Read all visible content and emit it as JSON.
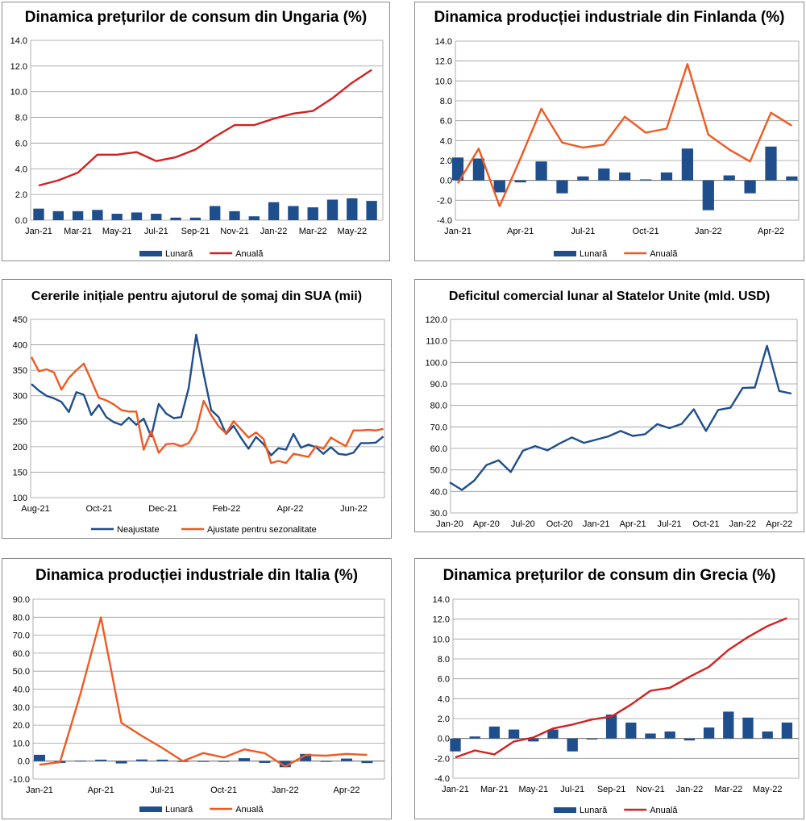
{
  "chart_data": [
    {
      "id": "hu",
      "type": "bar+line",
      "title": "Dinamica prețurilor de consum din Ungaria (%)",
      "ylim": [
        0,
        14
      ],
      "yticks": [
        "0.0",
        "2.0",
        "4.0",
        "6.0",
        "8.0",
        "10.0",
        "12.0",
        "14.0"
      ],
      "categories": [
        "Jan-21",
        "Feb-21",
        "Mar-21",
        "Apr-21",
        "May-21",
        "Jun-21",
        "Jul-21",
        "Aug-21",
        "Sep-21",
        "Oct-21",
        "Nov-21",
        "Dec-21",
        "Jan-22",
        "Feb-22",
        "Mar-22",
        "Apr-22",
        "May-22",
        "Jun-22"
      ],
      "xtick_labels": [
        "Jan-21",
        "Mar-21",
        "May-21",
        "Jul-21",
        "Sep-21",
        "Nov-21",
        "Jan-22",
        "Mar-22",
        "May-22"
      ],
      "series": [
        {
          "name": "Lunară",
          "kind": "bar",
          "color": "#1f4e8c",
          "values": [
            0.9,
            0.7,
            0.7,
            0.8,
            0.5,
            0.6,
            0.5,
            0.2,
            0.2,
            1.1,
            0.7,
            0.3,
            1.4,
            1.1,
            1.0,
            1.6,
            1.7,
            1.5
          ]
        },
        {
          "name": "Anuală",
          "kind": "line",
          "color": "#d42020",
          "values": [
            2.7,
            3.1,
            3.7,
            5.1,
            5.1,
            5.3,
            4.6,
            4.9,
            5.5,
            6.5,
            7.4,
            7.4,
            7.9,
            8.3,
            8.5,
            9.5,
            10.7,
            11.7
          ]
        }
      ]
    },
    {
      "id": "fi",
      "type": "bar+line",
      "title": "Dinamica producției industriale din Finlanda (%)",
      "ylim": [
        -4,
        14
      ],
      "yticks": [
        "-4.0",
        "-2.0",
        "0.0",
        "2.0",
        "4.0",
        "6.0",
        "8.0",
        "10.0",
        "12.0",
        "14.0"
      ],
      "categories": [
        "Jan-21",
        "Feb-21",
        "Mar-21",
        "Apr-21",
        "May-21",
        "Jun-21",
        "Jul-21",
        "Aug-21",
        "Sep-21",
        "Oct-21",
        "Nov-21",
        "Dec-21",
        "Jan-22",
        "Feb-22",
        "Mar-22",
        "Apr-22",
        "May-22"
      ],
      "xtick_labels": [
        "Jan-21",
        "Apr-21",
        "Jul-21",
        "Oct-21",
        "Jan-22",
        "Apr-22"
      ],
      "series": [
        {
          "name": "Lunară",
          "kind": "bar",
          "color": "#1f4e8c",
          "values": [
            2.3,
            2.2,
            -1.2,
            -0.2,
            1.9,
            -1.3,
            0.4,
            1.2,
            0.8,
            0.1,
            0.8,
            3.2,
            -3.0,
            0.5,
            -1.3,
            3.4,
            0.4
          ]
        },
        {
          "name": "Anuală",
          "kind": "line",
          "color": "#f05a22",
          "values": [
            -0.3,
            3.2,
            -2.6,
            2.2,
            7.2,
            3.8,
            3.3,
            3.6,
            6.4,
            4.8,
            5.2,
            11.7,
            4.6,
            3.1,
            1.9,
            6.8,
            5.5
          ]
        }
      ]
    },
    {
      "id": "us-claims",
      "type": "line",
      "title": "Cererile inițiale pentru ajutorul de șomaj din SUA (mii)",
      "ylim": [
        100,
        450
      ],
      "yticks": [
        "100",
        "150",
        "200",
        "250",
        "300",
        "350",
        "400",
        "450"
      ],
      "x_count": 48,
      "xtick_labels": [
        "Aug-21",
        "Oct-21",
        "Dec-21",
        "Feb-22",
        "Apr-22",
        "Jun-22"
      ],
      "series": [
        {
          "name": "Neajustate",
          "kind": "line",
          "color": "#1f4e8c",
          "values": [
            323,
            310,
            300,
            295,
            288,
            268,
            307,
            302,
            262,
            282,
            258,
            248,
            243,
            257,
            243,
            255,
            220,
            284,
            265,
            256,
            258,
            315,
            420,
            343,
            272,
            258,
            225,
            241,
            217,
            196,
            219,
            205,
            183,
            197,
            194,
            225,
            198,
            204,
            199,
            186,
            199,
            186,
            184,
            188,
            207,
            207,
            208,
            220
          ]
        },
        {
          "name": "Ajustate pentru sezonalitate",
          "kind": "line",
          "color": "#f05a22",
          "values": [
            376,
            348,
            352,
            346,
            312,
            335,
            350,
            363,
            330,
            296,
            291,
            283,
            272,
            269,
            269,
            194,
            230,
            188,
            205,
            206,
            201,
            207,
            232,
            290,
            262,
            240,
            226,
            250,
            234,
            218,
            228,
            215,
            168,
            172,
            168,
            186,
            183,
            180,
            201,
            196,
            218,
            209,
            201,
            232,
            232,
            233,
            232,
            235
          ]
        }
      ]
    },
    {
      "id": "us-deficit",
      "type": "line",
      "title": "Deficitul comercial lunar al Statelor Unite (mld. USD)",
      "ylim": [
        30,
        120
      ],
      "yticks": [
        "30.0",
        "40.0",
        "50.0",
        "60.0",
        "70.0",
        "80.0",
        "90.0",
        "100.0",
        "110.0",
        "120.0"
      ],
      "categories": [
        "Jan-20",
        "Feb-20",
        "Mar-20",
        "Apr-20",
        "May-20",
        "Jun-20",
        "Jul-20",
        "Aug-20",
        "Sep-20",
        "Oct-20",
        "Nov-20",
        "Dec-20",
        "Jan-21",
        "Feb-21",
        "Mar-21",
        "Apr-21",
        "May-21",
        "Jun-21",
        "Jul-21",
        "Aug-21",
        "Sep-21",
        "Oct-21",
        "Nov-21",
        "Dec-21",
        "Jan-22",
        "Feb-22",
        "Mar-22",
        "Apr-22",
        "May-22"
      ],
      "xtick_labels": [
        "Jan-20",
        "Apr-20",
        "Jul-20",
        "Oct-20",
        "Jan-21",
        "Apr-21",
        "Jul-21",
        "Oct-21",
        "Jan-22",
        "Apr-22"
      ],
      "series": [
        {
          "name": "Deficit",
          "kind": "line",
          "color": "#1f4e8c",
          "values": [
            44.2,
            40.7,
            45.0,
            52.2,
            54.5,
            49.0,
            58.9,
            61.1,
            59.1,
            62.3,
            65.1,
            62.6,
            64.1,
            65.6,
            68.1,
            65.8,
            66.6,
            71.3,
            69.4,
            71.4,
            78.2,
            68.1,
            77.9,
            78.9,
            88.1,
            88.3,
            107.7,
            86.7,
            85.5
          ]
        }
      ]
    },
    {
      "id": "it",
      "type": "bar+line",
      "title": "Dinamica producției industriale din Italia (%)",
      "ylim": [
        -10,
        90
      ],
      "yticks": [
        "-10.0",
        "0.0",
        "10.0",
        "20.0",
        "30.0",
        "40.0",
        "50.0",
        "60.0",
        "70.0",
        "80.0",
        "90.0"
      ],
      "categories": [
        "Jan-21",
        "Feb-21",
        "Mar-21",
        "Apr-21",
        "May-21",
        "Jun-21",
        "Jul-21",
        "Aug-21",
        "Sep-21",
        "Oct-21",
        "Nov-21",
        "Dec-21",
        "Jan-22",
        "Feb-22",
        "Mar-22",
        "Apr-22",
        "May-22"
      ],
      "xtick_labels": [
        "Jan-21",
        "Apr-21",
        "Jul-21",
        "Oct-21",
        "Jan-22",
        "Apr-22"
      ],
      "series": [
        {
          "name": "Lunară",
          "kind": "bar",
          "color": "#1f4e8c",
          "values": [
            3.5,
            -1.0,
            0.2,
            0.8,
            -1.3,
            0.9,
            0.8,
            0.0,
            0.0,
            -0.4,
            1.6,
            -1.0,
            -3.4,
            4.0,
            0.0,
            1.4,
            -1.1
          ]
        },
        {
          "name": "Anuală",
          "kind": "line",
          "color": "#f05a22",
          "values": [
            -2.0,
            -0.6,
            37.3,
            79.9,
            21.3,
            14.0,
            7.3,
            0.0,
            4.5,
            2.0,
            6.5,
            4.4,
            -3.0,
            3.3,
            3.0,
            4.0,
            3.4
          ]
        }
      ]
    },
    {
      "id": "gr",
      "type": "bar+line",
      "title": "Dinamica prețurilor de consum din Grecia (%)",
      "ylim": [
        -4,
        14
      ],
      "yticks": [
        "-4.0",
        "-2.0",
        "0.0",
        "2.0",
        "4.0",
        "6.0",
        "8.0",
        "10.0",
        "12.0",
        "14.0"
      ],
      "categories": [
        "Jan-21",
        "Feb-21",
        "Mar-21",
        "Apr-21",
        "May-21",
        "Jun-21",
        "Jul-21",
        "Aug-21",
        "Sep-21",
        "Oct-21",
        "Nov-21",
        "Dec-21",
        "Jan-22",
        "Feb-22",
        "Mar-22",
        "Apr-22",
        "May-22",
        "Jun-22"
      ],
      "xtick_labels": [
        "Jan-21",
        "Mar-21",
        "May-21",
        "Jul-21",
        "Sep-21",
        "Nov-21",
        "Jan-22",
        "Mar-22",
        "May-22"
      ],
      "series": [
        {
          "name": "Lunară",
          "kind": "bar",
          "color": "#1f4e8c",
          "values": [
            -1.3,
            0.2,
            1.2,
            0.9,
            -0.3,
            0.9,
            -1.3,
            -0.1,
            2.4,
            1.6,
            0.5,
            0.7,
            -0.2,
            1.1,
            2.7,
            2.1,
            0.7,
            1.6
          ]
        },
        {
          "name": "Anuală",
          "kind": "line",
          "color": "#d42020",
          "values": [
            -1.9,
            -1.2,
            -1.6,
            -0.3,
            0.1,
            1.0,
            1.4,
            1.9,
            2.2,
            3.4,
            4.8,
            5.1,
            6.2,
            7.2,
            8.9,
            10.2,
            11.3,
            12.1
          ]
        }
      ]
    }
  ]
}
